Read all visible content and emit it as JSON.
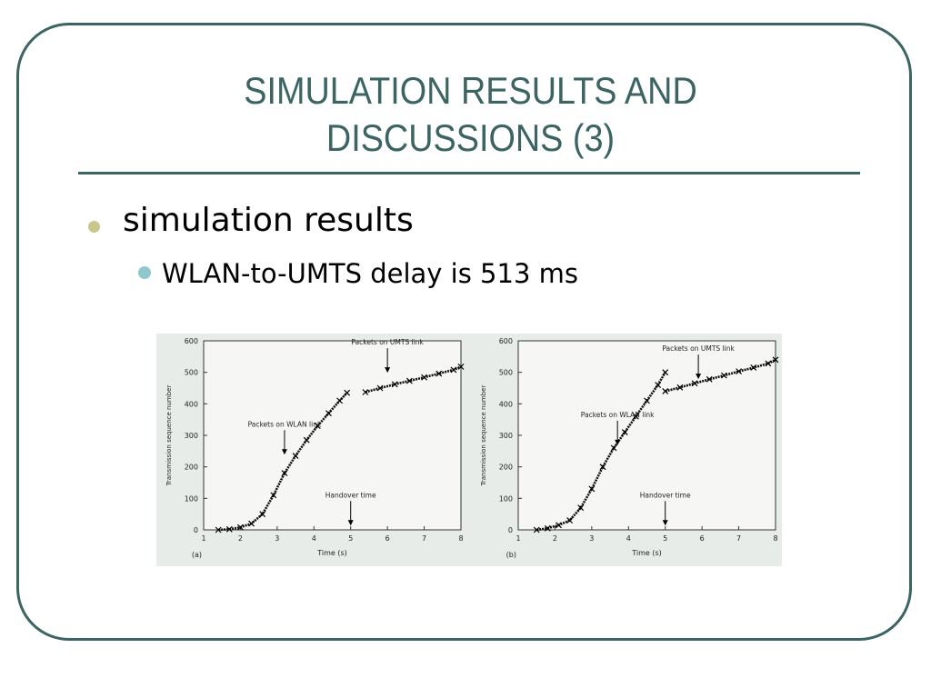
{
  "slide": {
    "title_line1": "SIMULATION RESULTS AND",
    "title_line2": "DISCUSSIONS (3)",
    "bullet1": "simulation results",
    "bullet2": "WLAN-to-UMTS delay is 513 ms"
  },
  "colors": {
    "accent": "#3b6462",
    "bullet1_dot": "#c9c78c",
    "bullet2_dot": "#8ec7cc",
    "figure_bg": "#e7ece9"
  },
  "chart_data": [
    {
      "type": "scatter",
      "panel_label": "(a)",
      "xlabel": "Time (s)",
      "ylabel": "Transmission sequence number",
      "xlim": [
        1,
        8
      ],
      "ylim": [
        0,
        600
      ],
      "xticks": [
        1,
        2,
        3,
        4,
        5,
        6,
        7,
        8
      ],
      "yticks": [
        0,
        100,
        200,
        300,
        400,
        500,
        600
      ],
      "grid": false,
      "annotations": [
        {
          "text": "Packets on WLAN link",
          "x": 3.2,
          "y": 230
        },
        {
          "text": "Packets on UMTS link",
          "x": 6.0,
          "y": 490
        },
        {
          "text": "Handover time",
          "x": 5.0,
          "y": 5
        }
      ],
      "series": [
        {
          "name": "Packets on WLAN link",
          "x": [
            1.4,
            1.7,
            2.0,
            2.3,
            2.6,
            2.9,
            3.2,
            3.5,
            3.8,
            4.1,
            4.4,
            4.7,
            4.9
          ],
          "y": [
            0,
            2,
            8,
            20,
            50,
            110,
            180,
            235,
            285,
            330,
            370,
            410,
            435
          ]
        },
        {
          "name": "Packets on UMTS link",
          "x": [
            5.4,
            5.8,
            6.2,
            6.6,
            7.0,
            7.4,
            7.8,
            8.0
          ],
          "y": [
            437,
            450,
            462,
            473,
            484,
            496,
            508,
            518
          ]
        }
      ]
    },
    {
      "type": "scatter",
      "panel_label": "(b)",
      "xlabel": "Time (s)",
      "ylabel": "Transmission sequence number",
      "xlim": [
        1,
        8
      ],
      "ylim": [
        0,
        600
      ],
      "xticks": [
        1,
        2,
        3,
        4,
        5,
        6,
        7,
        8
      ],
      "yticks": [
        0,
        100,
        200,
        300,
        400,
        500,
        600
      ],
      "grid": false,
      "annotations": [
        {
          "text": "Packets on WLAN link",
          "x": 3.7,
          "y": 260
        },
        {
          "text": "Packets on UMTS link",
          "x": 5.9,
          "y": 470
        },
        {
          "text": "Handover time",
          "x": 5.0,
          "y": 5
        }
      ],
      "series": [
        {
          "name": "Packets on WLAN link",
          "x": [
            1.5,
            1.8,
            2.1,
            2.4,
            2.7,
            3.0,
            3.3,
            3.6,
            3.9,
            4.2,
            4.5,
            4.8,
            5.0
          ],
          "y": [
            0,
            5,
            15,
            30,
            70,
            130,
            200,
            260,
            310,
            360,
            410,
            460,
            500
          ]
        },
        {
          "name": "Packets on UMTS link",
          "x": [
            5.0,
            5.4,
            5.8,
            6.2,
            6.6,
            7.0,
            7.4,
            7.8,
            8.0
          ],
          "y": [
            440,
            452,
            465,
            478,
            490,
            503,
            515,
            528,
            540
          ]
        }
      ]
    }
  ]
}
